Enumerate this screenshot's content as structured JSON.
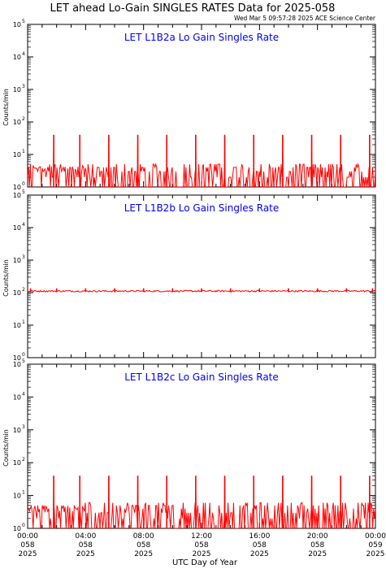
{
  "header": {
    "title": "LET ahead Lo-Gain SINGLES RATES Data for 2025-058",
    "timestamp": "Wed Mar  5 09:57:28 2025 ACE Science Center"
  },
  "axes": {
    "ylabel": "Counts/min",
    "xlabel": "UTC Day of Year",
    "y_ticks": [
      {
        "base": "10",
        "exp": "0"
      },
      {
        "base": "10",
        "exp": "1"
      },
      {
        "base": "10",
        "exp": "2"
      },
      {
        "base": "10",
        "exp": "3"
      },
      {
        "base": "10",
        "exp": "4"
      },
      {
        "base": "10",
        "exp": "5"
      }
    ],
    "x_ticks": [
      {
        "time": "00:00",
        "doy": "058",
        "year": "2025"
      },
      {
        "time": "04:00",
        "doy": "058",
        "year": "2025"
      },
      {
        "time": "08:00",
        "doy": "058",
        "year": "2025"
      },
      {
        "time": "12:00",
        "doy": "058",
        "year": "2025"
      },
      {
        "time": "16:00",
        "doy": "058",
        "year": "2025"
      },
      {
        "time": "20:00",
        "doy": "058",
        "year": "2025"
      },
      {
        "time": "00:00",
        "doy": "059",
        "year": "2025"
      }
    ]
  },
  "colors": {
    "data": "#ff0000",
    "panel_title": "#0000ff",
    "axis": "#000000"
  },
  "chart_data": [
    {
      "type": "line",
      "title": "LET L1B2a Lo Gain Singles Rate",
      "xlabel": "",
      "ylabel": "Counts/min",
      "x_unit": "hours of DOY 058",
      "xlim": [
        0,
        24
      ],
      "ylim": [
        1,
        100000
      ],
      "y_scale": "log",
      "series": [
        {
          "baseline_range": [
            1,
            5
          ],
          "spike_value": 40,
          "spike_hours": [
            1.8,
            3.6,
            5.6,
            7.6,
            9.6,
            11.6,
            13.6,
            15.6,
            17.6,
            19.6,
            21.6,
            23.6
          ]
        }
      ]
    },
    {
      "type": "line",
      "title": "LET L1B2b Lo Gain Singles Rate",
      "xlabel": "",
      "ylabel": "Counts/min",
      "x_unit": "hours of DOY 058",
      "xlim": [
        0,
        24
      ],
      "ylim": [
        1,
        100000
      ],
      "y_scale": "log",
      "series": [
        {
          "baseline_range": [
            105,
            118
          ],
          "spike_value": 135,
          "spike_hours": [
            0.2,
            2.0,
            4.0,
            6.0,
            8.0,
            10.0,
            12.0,
            14.0,
            16.0,
            18.0,
            20.0,
            22.0,
            23.8
          ]
        }
      ]
    },
    {
      "type": "line",
      "title": "LET L1B2c Lo Gain Singles Rate",
      "xlabel": "UTC Day of Year",
      "ylabel": "Counts/min",
      "x_unit": "hours of DOY 058",
      "xlim": [
        0,
        24
      ],
      "ylim": [
        1,
        100000
      ],
      "y_scale": "log",
      "series": [
        {
          "baseline_range": [
            1,
            6
          ],
          "spike_value": 40,
          "spike_hours": [
            1.8,
            3.6,
            5.6,
            7.6,
            9.6,
            11.6,
            13.6,
            15.6,
            17.6,
            19.6,
            21.6,
            23.6
          ]
        }
      ]
    }
  ]
}
